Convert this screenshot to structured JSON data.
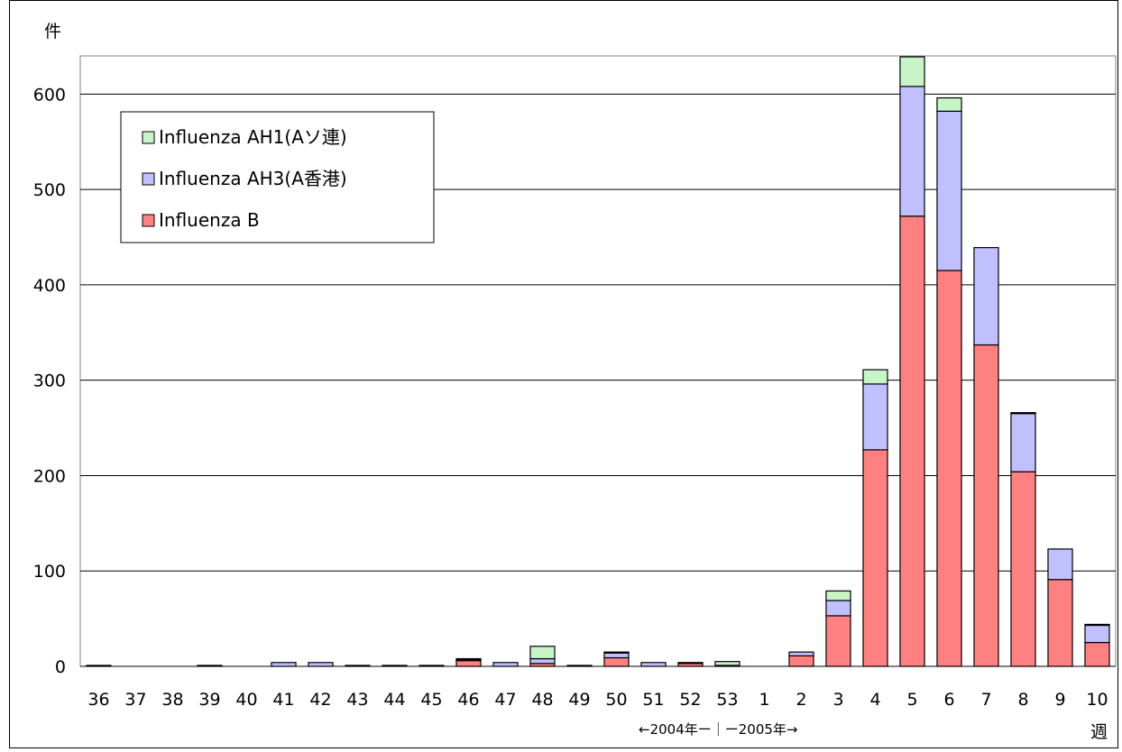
{
  "chart_data": {
    "type": "bar",
    "stacked": true,
    "y_unit_label": "件",
    "x_unit_label": "週",
    "year_caption": "←2004年ー｜ー2005年→",
    "categories": [
      "36",
      "37",
      "38",
      "39",
      "40",
      "41",
      "42",
      "43",
      "44",
      "45",
      "46",
      "47",
      "48",
      "49",
      "50",
      "51",
      "52",
      "53",
      "1",
      "2",
      "3",
      "4",
      "5",
      "6",
      "7",
      "8",
      "9",
      "10"
    ],
    "series": [
      {
        "name": "Influenza B",
        "color": "#ff8080",
        "values": [
          0,
          0,
          0,
          0,
          0,
          0,
          0,
          0,
          0,
          0,
          6,
          0,
          3,
          0,
          9,
          0,
          3,
          0,
          0,
          11,
          53,
          227,
          472,
          415,
          337,
          204,
          91,
          25
        ]
      },
      {
        "name": "Influenza AH3(A香港)",
        "color": "#c0c0ff",
        "values": [
          1,
          0,
          0,
          1,
          0,
          4,
          4,
          1,
          1,
          1,
          1,
          4,
          5,
          1,
          5,
          4,
          1,
          1,
          0,
          4,
          16,
          69,
          136,
          167,
          102,
          61,
          32,
          18
        ]
      },
      {
        "name": "Influenza AH1(Aソ連)",
        "color": "#c8f5c8",
        "values": [
          0,
          0,
          0,
          0,
          0,
          0,
          0,
          0,
          0,
          0,
          1,
          0,
          13,
          0,
          1,
          0,
          0,
          4,
          0,
          0,
          10,
          15,
          31,
          14,
          0,
          1,
          0,
          1
        ]
      }
    ],
    "ylim": [
      0,
      640
    ],
    "yticks": [
      0,
      100,
      200,
      300,
      400,
      500,
      600
    ],
    "grid": true,
    "legend_position": "top-left"
  }
}
